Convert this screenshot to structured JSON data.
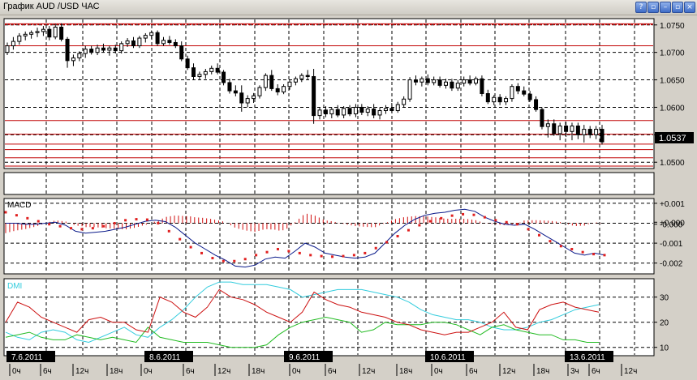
{
  "window": {
    "title": "График AUD /USD  ЧАС",
    "buttons": [
      "?",
      "▫",
      "–",
      "▫",
      "×"
    ]
  },
  "colors": {
    "macd_hist": "#d01010",
    "macd_line": "#0a1a8a",
    "macd_signal": "#e02020",
    "dmi_adx": "#33ccdd",
    "dmi_pos": "#22bb22",
    "dmi_neg": "#cc1010",
    "level_line": "#c00000"
  },
  "chart_data": [
    {
      "type": "candlestick",
      "title": "",
      "y_ticks": [
        "1.0750",
        "1.0700",
        "1.0650",
        "1.0600",
        "1.0550",
        "1.0500"
      ],
      "ylim": [
        1.049,
        1.076
      ],
      "current_price": "1.0537",
      "levels": [
        1.0752,
        1.0712,
        1.0576,
        1.0551,
        1.0533,
        1.0523,
        1.0508,
        1.0493
      ],
      "candles": [
        [
          1.07,
          1.0718,
          1.0695,
          1.0712
        ],
        [
          1.0712,
          1.0728,
          1.0705,
          1.072
        ],
        [
          1.072,
          1.0735,
          1.0714,
          1.073
        ],
        [
          1.073,
          1.0738,
          1.0722,
          1.0733
        ],
        [
          1.0733,
          1.074,
          1.0725,
          1.0736
        ],
        [
          1.0736,
          1.0745,
          1.0728,
          1.0738
        ],
        [
          1.0738,
          1.0748,
          1.073,
          1.0742
        ],
        [
          1.0742,
          1.0748,
          1.0722,
          1.0728
        ],
        [
          1.0728,
          1.0752,
          1.0724,
          1.0746
        ],
        [
          1.0746,
          1.0753,
          1.072,
          1.0724
        ],
        [
          1.0724,
          1.0728,
          1.0672,
          1.0685
        ],
        [
          1.0685,
          1.0696,
          1.0675,
          1.069
        ],
        [
          1.069,
          1.0702,
          1.0684,
          1.0698
        ],
        [
          1.0698,
          1.0712,
          1.069,
          1.0706
        ],
        [
          1.0706,
          1.0712,
          1.0696,
          1.07
        ],
        [
          1.07,
          1.0714,
          1.0695,
          1.0708
        ],
        [
          1.0708,
          1.0716,
          1.07,
          1.0704
        ],
        [
          1.0704,
          1.0712,
          1.0694,
          1.0708
        ],
        [
          1.0708,
          1.0714,
          1.0698,
          1.0703
        ],
        [
          1.0703,
          1.072,
          1.0698,
          1.0716
        ],
        [
          1.0716,
          1.0726,
          1.071,
          1.0721
        ],
        [
          1.0721,
          1.0728,
          1.0708,
          1.0712
        ],
        [
          1.0712,
          1.073,
          1.0708,
          1.0726
        ],
        [
          1.0726,
          1.0735,
          1.0718,
          1.0731
        ],
        [
          1.0731,
          1.074,
          1.0724,
          1.0736
        ],
        [
          1.0736,
          1.074,
          1.0712,
          1.0716
        ],
        [
          1.0716,
          1.0728,
          1.0712,
          1.0722
        ],
        [
          1.0722,
          1.073,
          1.0714,
          1.0718
        ],
        [
          1.0718,
          1.0724,
          1.0708,
          1.0712
        ],
        [
          1.0712,
          1.072,
          1.0684,
          1.0688
        ],
        [
          1.0688,
          1.0694,
          1.0668,
          1.0672
        ],
        [
          1.0672,
          1.068,
          1.065,
          1.0656
        ],
        [
          1.0656,
          1.0665,
          1.065,
          1.066
        ],
        [
          1.066,
          1.067,
          1.0652,
          1.0665
        ],
        [
          1.0665,
          1.0676,
          1.066,
          1.0671
        ],
        [
          1.0671,
          1.068,
          1.066,
          1.0664
        ],
        [
          1.0664,
          1.0668,
          1.064,
          1.0645
        ],
        [
          1.0645,
          1.0652,
          1.0625,
          1.063
        ],
        [
          1.063,
          1.064,
          1.062,
          1.0626
        ],
        [
          1.0626,
          1.064,
          1.0592,
          1.0608
        ],
        [
          1.0608,
          1.0622,
          1.06,
          1.0616
        ],
        [
          1.0616,
          1.0626,
          1.0608,
          1.0621
        ],
        [
          1.0621,
          1.064,
          1.0616,
          1.0636
        ],
        [
          1.0636,
          1.0662,
          1.063,
          1.0658
        ],
        [
          1.0658,
          1.0668,
          1.063,
          1.0634
        ],
        [
          1.0634,
          1.0642,
          1.0622,
          1.0628
        ],
        [
          1.0628,
          1.0642,
          1.0624,
          1.0638
        ],
        [
          1.0638,
          1.065,
          1.0632,
          1.0646
        ],
        [
          1.0646,
          1.0656,
          1.064,
          1.0652
        ],
        [
          1.0652,
          1.0662,
          1.0646,
          1.0658
        ],
        [
          1.0658,
          1.0668,
          1.065,
          1.0656
        ],
        [
          1.0656,
          1.067,
          1.057,
          1.0585
        ],
        [
          1.0585,
          1.06,
          1.0578,
          1.0595
        ],
        [
          1.0595,
          1.0602,
          1.0582,
          1.0588
        ],
        [
          1.0588,
          1.06,
          1.058,
          1.0596
        ],
        [
          1.0596,
          1.0604,
          1.0582,
          1.0586
        ],
        [
          1.0586,
          1.0602,
          1.058,
          1.0598
        ],
        [
          1.0598,
          1.0604,
          1.0584,
          1.0588
        ],
        [
          1.0588,
          1.0606,
          1.0582,
          1.06
        ],
        [
          1.06,
          1.0606,
          1.0586,
          1.0591
        ],
        [
          1.0591,
          1.0602,
          1.0584,
          1.0597
        ],
        [
          1.0597,
          1.0606,
          1.058,
          1.0586
        ],
        [
          1.0586,
          1.06,
          1.0578,
          1.0594
        ],
        [
          1.0594,
          1.0604,
          1.0588,
          1.0598
        ],
        [
          1.0598,
          1.0608,
          1.059,
          1.0594
        ],
        [
          1.0594,
          1.061,
          1.059,
          1.0605
        ],
        [
          1.0605,
          1.062,
          1.06,
          1.0615
        ],
        [
          1.0615,
          1.0655,
          1.061,
          1.065
        ],
        [
          1.065,
          1.0658,
          1.064,
          1.0646
        ],
        [
          1.0646,
          1.0656,
          1.0638,
          1.0652
        ],
        [
          1.0652,
          1.066,
          1.064,
          1.0645
        ],
        [
          1.0645,
          1.0656,
          1.064,
          1.065
        ],
        [
          1.065,
          1.0656,
          1.0636,
          1.064
        ],
        [
          1.064,
          1.0652,
          1.0634,
          1.0646
        ],
        [
          1.0646,
          1.0652,
          1.063,
          1.0635
        ],
        [
          1.0635,
          1.065,
          1.063,
          1.0644
        ],
        [
          1.0644,
          1.0656,
          1.0638,
          1.065
        ],
        [
          1.065,
          1.0658,
          1.064,
          1.0644
        ],
        [
          1.0644,
          1.0656,
          1.064,
          1.0652
        ],
        [
          1.0652,
          1.0658,
          1.062,
          1.0625
        ],
        [
          1.0625,
          1.0632,
          1.0606,
          1.061
        ],
        [
          1.061,
          1.0622,
          1.0604,
          1.0618
        ],
        [
          1.0618,
          1.0624,
          1.0604,
          1.061
        ],
        [
          1.061,
          1.062,
          1.0604,
          1.0616
        ],
        [
          1.0616,
          1.0642,
          1.061,
          1.0638
        ],
        [
          1.0638,
          1.0644,
          1.0624,
          1.063
        ],
        [
          1.063,
          1.0638,
          1.062,
          1.0624
        ],
        [
          1.0624,
          1.063,
          1.061,
          1.0614
        ],
        [
          1.0614,
          1.062,
          1.0592,
          1.0596
        ],
        [
          1.0596,
          1.06,
          1.056,
          1.0565
        ],
        [
          1.0565,
          1.0578,
          1.0545,
          1.057
        ],
        [
          1.057,
          1.0578,
          1.0548,
          1.0552
        ],
        [
          1.0552,
          1.0572,
          1.054,
          1.0566
        ],
        [
          1.0566,
          1.0574,
          1.0546,
          1.0556
        ],
        [
          1.0556,
          1.0572,
          1.054,
          1.0566
        ],
        [
          1.0566,
          1.0572,
          1.0542,
          1.055
        ],
        [
          1.055,
          1.0568,
          1.0536,
          1.056
        ],
        [
          1.056,
          1.0566,
          1.0544,
          1.055
        ],
        [
          1.055,
          1.0566,
          1.0542,
          1.056
        ],
        [
          1.056,
          1.0568,
          1.0532,
          1.0537
        ]
      ]
    },
    {
      "type": "line",
      "title": "MACD",
      "y_ticks": [
        "+0.001",
        "+0.000",
        "-0.000",
        "-0.001",
        "-0.002"
      ],
      "ylim": [
        -0.0025,
        0.0012
      ],
      "series": [
        {
          "values": [
            0.0,
            0.0,
            -5e-05,
            -5e-05,
            0.0,
            5e-05,
            -0.0001,
            -0.0004,
            -0.0005,
            -0.00045,
            -0.0004,
            -0.0003,
            -0.0002,
            -5e-05,
            0.0001,
            0.00015,
            8e-05,
            -0.0002,
            -0.0006,
            -0.001,
            -0.0013,
            -0.0016,
            -0.00185,
            -0.00215,
            -0.0022,
            -0.0021,
            -0.0018,
            -0.0017,
            -0.00175,
            -0.0014,
            -0.001,
            -0.0012,
            -0.0015,
            -0.0016,
            -0.0017,
            -0.00175,
            -0.0017,
            -0.0015,
            -0.001,
            -0.0005,
            -0.0001,
            0.0002,
            0.0004,
            0.0005,
            0.00055,
            0.00065,
            0.0007,
            0.0006,
            0.0003,
            0.0001,
            -5e-05,
            -0.0001,
            -5e-05,
            -0.0003,
            -0.0006,
            -0.0009,
            -0.0012,
            -0.0015,
            -0.0016,
            -0.0015,
            -0.0016
          ]
        },
        {
          "style": "dots",
          "values": [
            0.00055,
            0.0004,
            0.00025,
            0.0001,
            -5e-05,
            -0.00015,
            -0.00025,
            -0.0003,
            -0.00025,
            -0.00015,
            0.0,
            0.00015,
            0.0002,
            0.00018,
            0.0,
            -0.0004,
            -0.0008,
            -0.0012,
            -0.0015,
            -0.00175,
            -0.0019,
            -0.0019,
            -0.0018,
            -0.0016,
            -0.00145,
            -0.0013,
            -0.0014,
            -0.0015,
            -0.0016,
            -0.00165,
            -0.00168,
            -0.00165,
            -0.0016,
            -0.0015,
            -0.00125,
            -0.00095,
            -0.00065,
            -0.00035,
            -0.0001,
            0.0001,
            0.00025,
            0.00038,
            0.00045,
            0.00042,
            0.0003,
            0.00015,
            5e-05,
            -5e-05,
            -0.0003,
            -0.0006,
            -0.0009,
            -0.00115,
            -0.0013,
            -0.00145,
            -0.00155,
            -0.0016
          ]
        }
      ]
    },
    {
      "type": "line",
      "title": "DMI",
      "y_ticks": [
        "30",
        "20",
        "10"
      ],
      "ylim": [
        7,
        37
      ],
      "series": [
        {
          "values": [
            16,
            14,
            13,
            16,
            17,
            16,
            13,
            12,
            14,
            16,
            18,
            15,
            14,
            18,
            21,
            25,
            30,
            34,
            36,
            36,
            35,
            35,
            35,
            34,
            33,
            30,
            31,
            32,
            33,
            33,
            33,
            32,
            31,
            30,
            28,
            25,
            23,
            22,
            21,
            21,
            20,
            18,
            17,
            17,
            18,
            20,
            21,
            23,
            25,
            26,
            27
          ]
        },
        {
          "values": [
            14,
            15,
            16,
            14,
            13,
            13,
            15,
            14,
            13,
            14,
            13,
            12,
            18,
            14,
            13,
            12,
            12,
            12,
            11,
            10,
            10,
            10,
            11,
            15,
            18,
            20,
            21,
            22,
            21,
            20,
            16,
            17,
            20,
            19,
            19,
            19,
            20,
            20,
            19,
            17,
            15,
            18,
            19,
            17,
            16,
            15,
            15,
            13,
            13,
            12,
            12
          ]
        },
        {
          "values": [
            20,
            28,
            26,
            22,
            20,
            18,
            16,
            21,
            22,
            20,
            20,
            17,
            16,
            30,
            28,
            24,
            22,
            26,
            33,
            30,
            29,
            27,
            24,
            22,
            20,
            24,
            32,
            29,
            27,
            26,
            24,
            23,
            22,
            20,
            19,
            17,
            16,
            15,
            16,
            16,
            18,
            20,
            24,
            18,
            17,
            25,
            27,
            28,
            26,
            25,
            24
          ]
        }
      ]
    }
  ],
  "x_axis": {
    "date_labels": [
      "7.6.2011",
      "8.6.2011",
      "9.6.2011",
      "10.6.2011",
      "13.6.2011"
    ],
    "hour_labels": [
      "0ч",
      "6ч",
      "12ч",
      "18ч",
      "0ч",
      "6ч",
      "12ч",
      "18ч",
      "0ч",
      "6ч",
      "12ч",
      "18ч",
      "0ч",
      "6ч",
      "12ч",
      "18ч",
      "3ч",
      "6ч",
      "12ч"
    ]
  }
}
